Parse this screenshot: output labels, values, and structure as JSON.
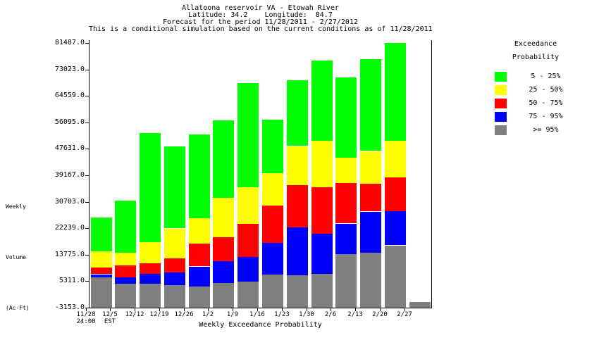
{
  "header": {
    "line1": "Allatoona reservoir VA - Etowah River",
    "line2": "Latitude: 34.2    Longitude:  84.7",
    "line3": "Forecast for the period 11/28/2011 - 2/27/2012",
    "line4": "This is a conditional simulation based on the current conditions as of 11/28/2011"
  },
  "legend": {
    "title_line1": "Exceedance",
    "title_line2": "Probability",
    "items": [
      {
        "label": "5 - 25%",
        "color": "#00ff00"
      },
      {
        "label": "25 - 50%",
        "color": "#ffff00"
      },
      {
        "label": "50 - 75%",
        "color": "#ff0000"
      },
      {
        "label": "75 - 95%",
        "color": "#0000ff"
      },
      {
        "label": ">= 95%",
        "color": "#808080"
      }
    ]
  },
  "chart_data": {
    "type": "bar",
    "subtype": "stacked",
    "title": "Allatoona reservoir VA - Etowah River",
    "xlabel": "Weekly Exceedance Probability",
    "ylabel": "Weekly Volume (Ac-Ft)",
    "ylabel_lines": [
      "Weekly",
      "Volume",
      "(Ac-Ft)"
    ],
    "ylim": [
      -3153,
      81487
    ],
    "baseline": -3153,
    "grid": false,
    "legend_position": "right",
    "y_tick_labels": [
      "81487.0",
      "73023.0",
      "64559.0",
      "56095.0",
      "47631.0",
      "39167.0",
      "30703.0",
      "22239.0",
      "13775.0",
      "5311.0",
      "-3153.0"
    ],
    "categories": [
      "11/28",
      "12/5",
      "12/12",
      "12/19",
      "12/26",
      "1/2",
      "1/9",
      "1/16",
      "1/23",
      "1/30",
      "2/6",
      "2/13",
      "2/20",
      "2/27"
    ],
    "category_sublabels": [
      "24:00",
      "EST",
      "",
      "",
      "",
      "",
      "",
      "",
      "",
      "",
      "",
      "",
      "",
      ""
    ],
    "stack_order_names": [
      ">= 95%",
      "75 - 95%",
      "50 - 75%",
      "25 - 50%",
      "5 - 25%"
    ],
    "stack_order_colors": [
      "#808080",
      "#0000ff",
      "#ff0000",
      "#ffff00",
      "#00ff00"
    ],
    "series_tops_note": "cumulative top value (Ac-Ft) of each band per week, order: >=95%, 75-95%, 50-75%, 25-50%, 5-25%; bars start at baseline -3153",
    "series_tops": [
      [
        6600,
        7500,
        9800,
        14900,
        25700
      ],
      [
        4500,
        6600,
        10400,
        14500,
        31100
      ],
      [
        4500,
        7700,
        11100,
        17800,
        52700
      ],
      [
        4200,
        8200,
        12700,
        22100,
        48300
      ],
      [
        3800,
        10000,
        17300,
        25500,
        52200
      ],
      [
        4800,
        11800,
        19400,
        32000,
        56700
      ],
      [
        5300,
        13100,
        23800,
        35400,
        68700
      ],
      [
        7500,
        17600,
        29500,
        39800,
        57000
      ],
      [
        7100,
        22400,
        36200,
        48500,
        69500
      ],
      [
        7700,
        20500,
        35400,
        50200,
        75900
      ],
      [
        14100,
        23700,
        36600,
        44800,
        70500
      ],
      [
        14500,
        27500,
        36600,
        46900,
        76200
      ],
      [
        16700,
        27800,
        38600,
        50200,
        81500
      ],
      [
        -1300,
        -1300,
        -1300,
        -1300,
        -1300
      ]
    ]
  }
}
